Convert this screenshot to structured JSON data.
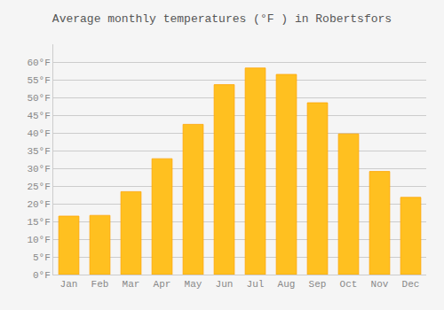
{
  "chart_data": {
    "type": "bar",
    "title": "Average monthly temperatures (°F ) in Robertsfors",
    "categories": [
      "Jan",
      "Feb",
      "Mar",
      "Apr",
      "May",
      "Jun",
      "Jul",
      "Aug",
      "Sep",
      "Oct",
      "Nov",
      "Dec"
    ],
    "values": [
      16.5,
      16.7,
      23.4,
      32.7,
      42.4,
      53.6,
      58.3,
      56.5,
      48.5,
      39.7,
      29.1,
      21.8
    ],
    "color": "#FFC020",
    "ylim": [
      0,
      65
    ],
    "yticks": [
      {
        "value": 0,
        "label": "0°F"
      },
      {
        "value": 5,
        "label": "5°F"
      },
      {
        "value": 10,
        "label": "10°F"
      },
      {
        "value": 15,
        "label": "15°F"
      },
      {
        "value": 20,
        "label": "20°F"
      },
      {
        "value": 25,
        "label": "25°F"
      },
      {
        "value": 30,
        "label": "30°F"
      },
      {
        "value": 35,
        "label": "35°F"
      },
      {
        "value": 40,
        "label": "40°F"
      },
      {
        "value": 45,
        "label": "45°F"
      },
      {
        "value": 50,
        "label": "50°F"
      },
      {
        "value": 55,
        "label": "55°F"
      },
      {
        "value": 60,
        "label": "60°F"
      }
    ],
    "grid": true
  }
}
